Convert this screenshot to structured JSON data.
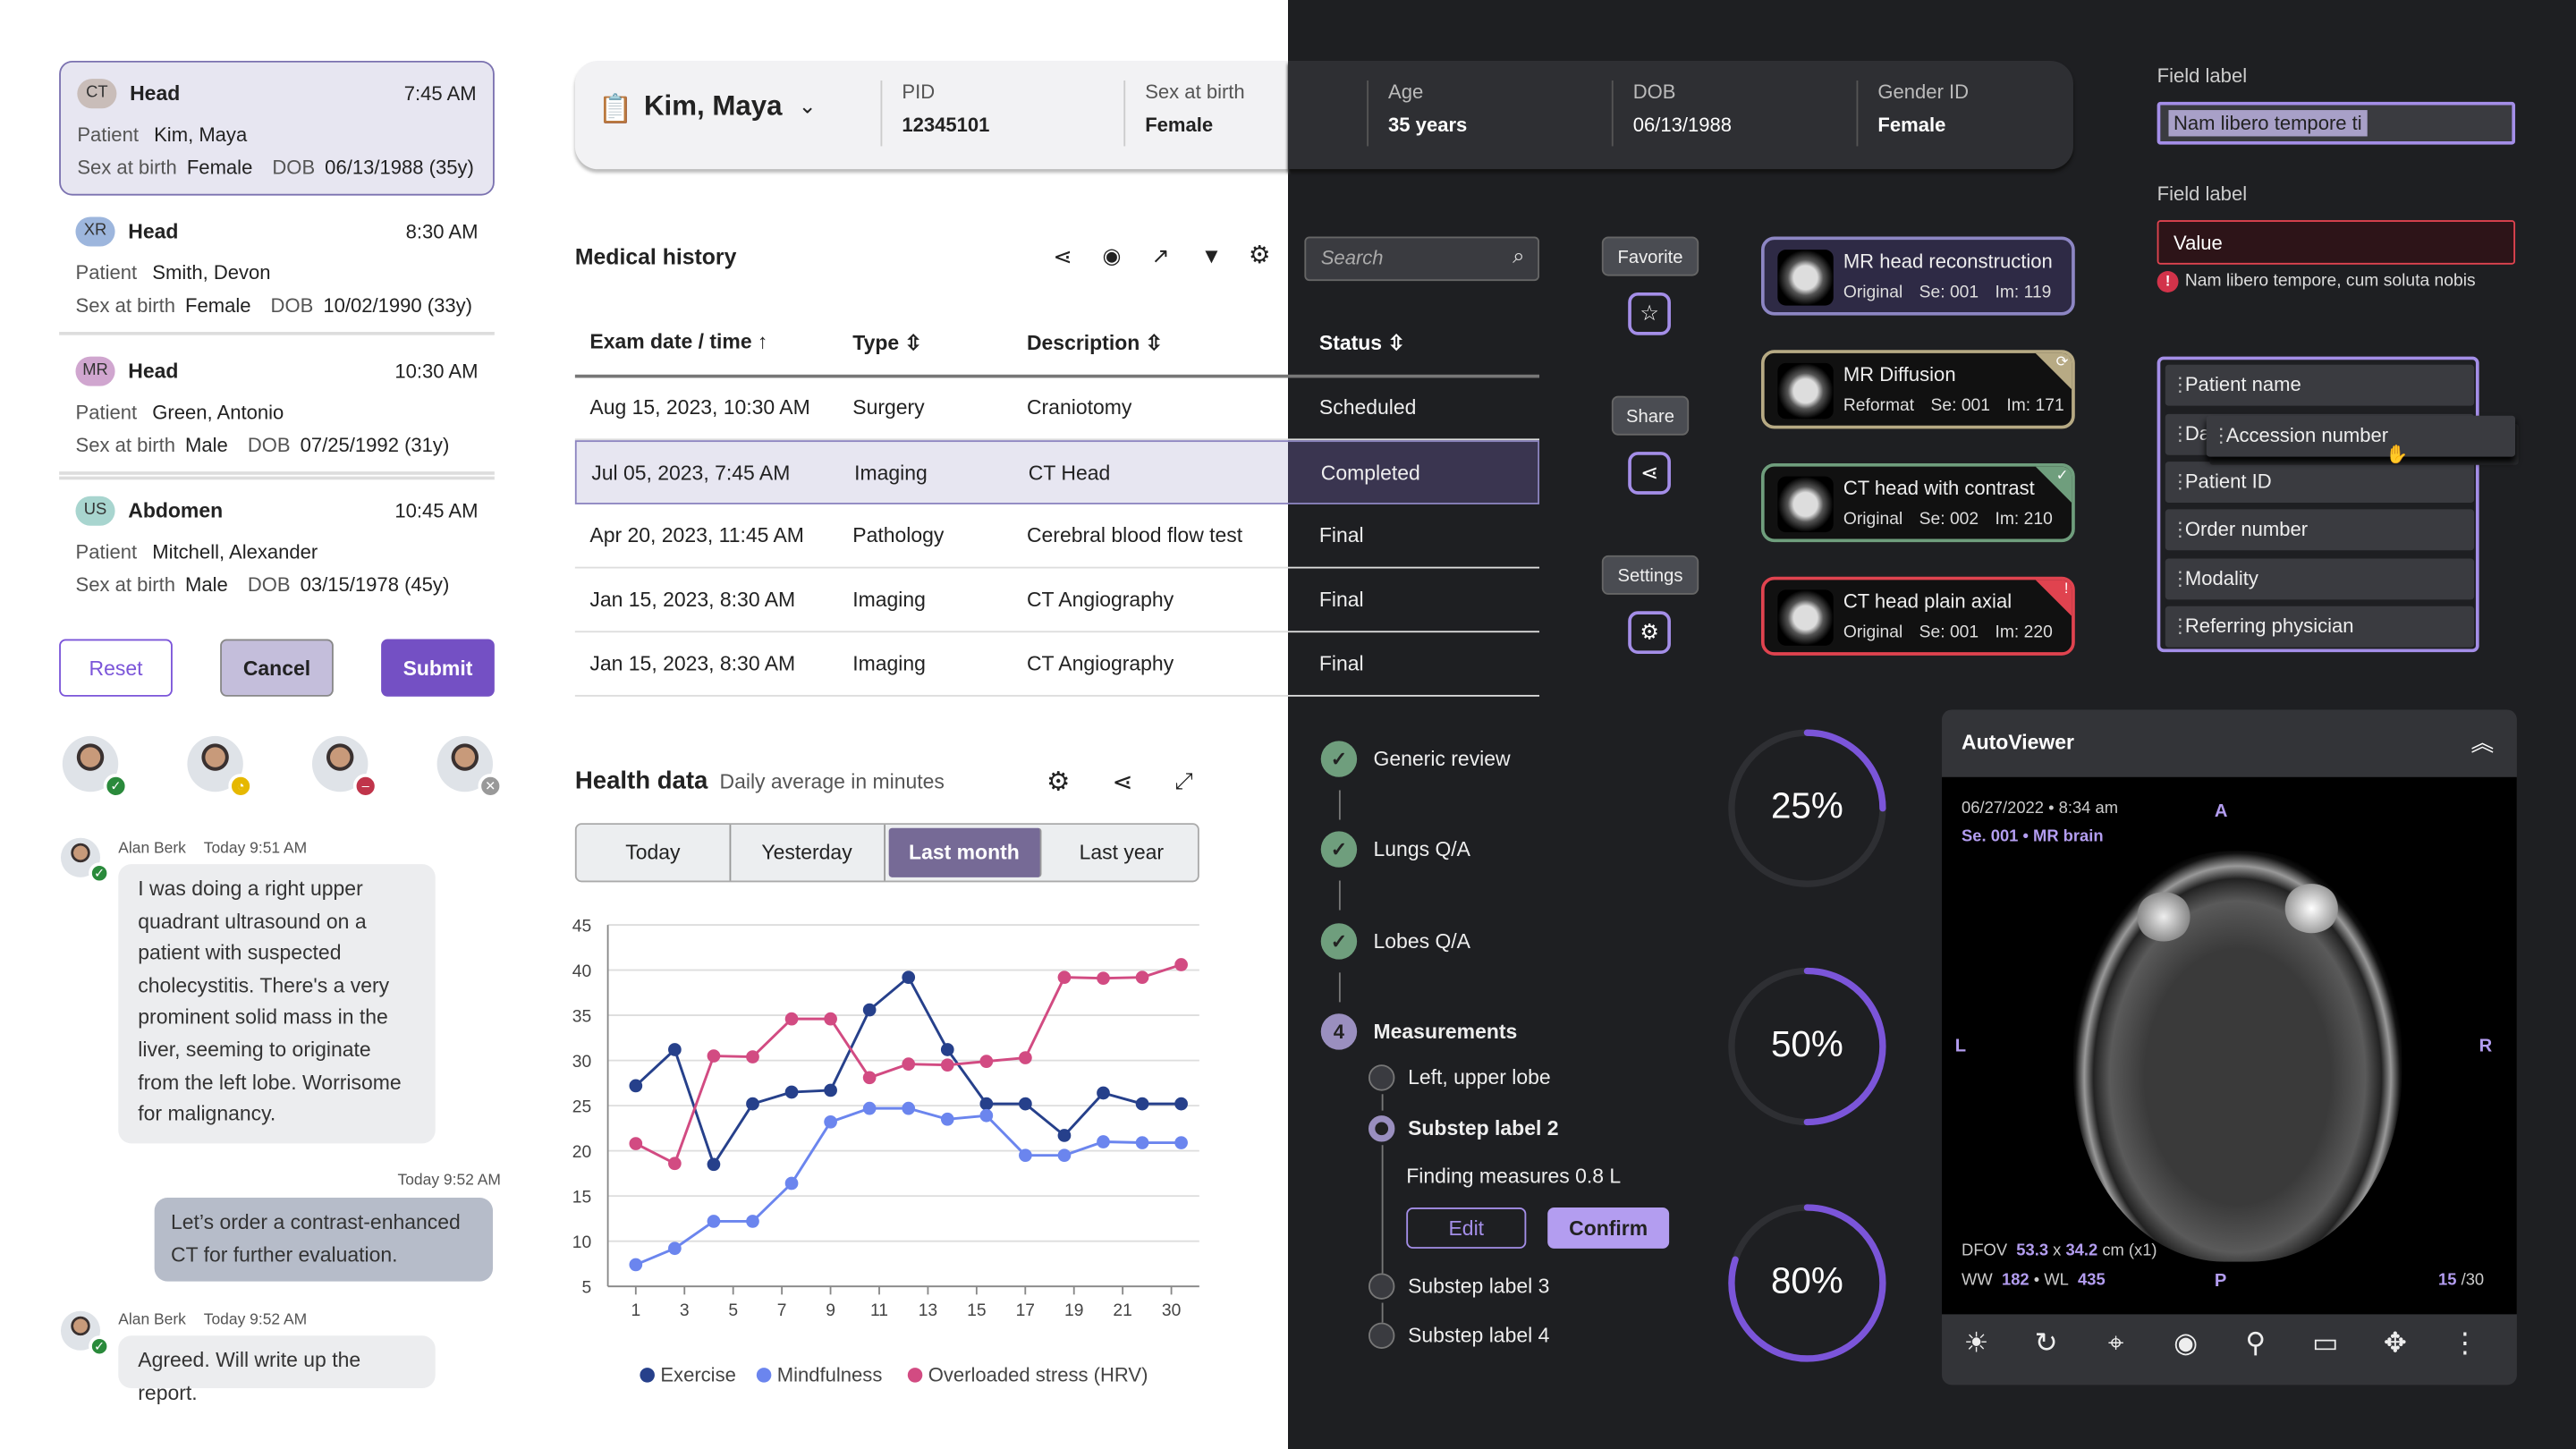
{
  "colors": {
    "accent": "#7b55d9",
    "accent_light": "#b39df0",
    "success": "#6f9e7d",
    "error": "#d2334a",
    "warning": "#b7aa84",
    "dark_bg": "#1e1f22"
  },
  "worklist": [
    {
      "modality": "CT",
      "badge_color": "#c9bdb9",
      "region": "Head",
      "time": "7:45 AM",
      "patient_label": "Patient",
      "patient": "Kim, Maya",
      "sex_label": "Sex at birth",
      "sex": "Female",
      "dob_label": "DOB",
      "dob": "06/13/1988 (35y)",
      "selected": true
    },
    {
      "modality": "XR",
      "badge_color": "#9db6dd",
      "region": "Head",
      "time": "8:30 AM",
      "patient_label": "Patient",
      "patient": "Smith, Devon",
      "sex_label": "Sex at birth",
      "sex": "Female",
      "dob_label": "DOB",
      "dob": "10/02/1990 (33y)"
    },
    {
      "modality": "MR",
      "badge_color": "#d0a6cf",
      "region": "Head",
      "time": "10:30 AM",
      "patient_label": "Patient",
      "patient": "Green, Antonio",
      "sex_label": "Sex at birth",
      "sex": "Male",
      "dob_label": "DOB",
      "dob": "07/25/1992 (31y)"
    },
    {
      "modality": "US",
      "badge_color": "#a8d5cf",
      "region": "Abdomen",
      "time": "10:45 AM",
      "patient_label": "Patient",
      "patient": "Mitchell, Alexander",
      "sex_label": "Sex at birth",
      "sex": "Male",
      "dob_label": "DOB",
      "dob": "03/15/1978 (45y)"
    }
  ],
  "actions": {
    "reset": "Reset",
    "cancel": "Cancel",
    "submit": "Submit"
  },
  "presence": [
    {
      "status": "available",
      "icon": "check-icon"
    },
    {
      "status": "away",
      "icon": "clock-icon"
    },
    {
      "status": "busy",
      "icon": "minus-icon"
    },
    {
      "status": "offline",
      "icon": "x-icon"
    }
  ],
  "chat": [
    {
      "author": "Alan Berk",
      "time": "Today 9:51 AM",
      "text": "I was doing a right upper quadrant ultrasound on a patient with suspected cholecystitis. There's a very prominent solid mass in the liver, seeming to originate from the left lobe. Worrisome for malignancy."
    },
    {
      "author": "",
      "time": "Today 9:52 AM",
      "text": "Let’s order a contrast-enhanced CT for further evaluation."
    },
    {
      "author": "Alan Berk",
      "time": "Today 9:52 AM",
      "text": "Agreed. Will write up the report."
    }
  ],
  "patient_header": {
    "name": "Kim, Maya",
    "fields": [
      {
        "label": "PID",
        "value": "12345101"
      },
      {
        "label": "Sex at birth",
        "value": "Female"
      },
      {
        "label": "Age",
        "value": "35 years"
      },
      {
        "label": "DOB",
        "value": "06/13/1988"
      },
      {
        "label": "Gender ID",
        "value": "Female"
      }
    ]
  },
  "medical_history": {
    "title": "Medical history",
    "search_placeholder": "Search",
    "columns": [
      "Exam date / time",
      "Type",
      "Description",
      "Status"
    ],
    "rows": [
      [
        "Aug 15, 2023, 10:30 AM",
        "Surgery",
        "Craniotomy",
        "Scheduled"
      ],
      [
        "Jul 05, 2023, 7:45 AM",
        "Imaging",
        "CT Head",
        "Completed"
      ],
      [
        "Apr 20, 2023, 11:45 AM",
        "Pathology",
        "Cerebral blood flow test",
        "Final"
      ],
      [
        "Jan 15, 2023, 8:30 AM",
        "Imaging",
        "CT Angiography",
        "Final"
      ],
      [
        "Jan 15, 2023, 8:30 AM",
        "Imaging",
        "CT Angiography",
        "Final"
      ]
    ],
    "selected_row": 1
  },
  "tooltips": [
    {
      "label": "Favorite",
      "icon": "star-icon"
    },
    {
      "label": "Share",
      "icon": "share-icon"
    },
    {
      "label": "Settings",
      "icon": "gear-icon"
    }
  ],
  "series": [
    {
      "title": "MR head reconstruction",
      "type": "Original",
      "se": "Se: 001",
      "im": "Im: 119",
      "border": "#8d86c4",
      "bg": "#2e2a45",
      "status": "default"
    },
    {
      "title": "MR Diffusion",
      "type": "Reformat",
      "se": "Se: 001",
      "im": "Im: 171",
      "border": "#b7aa84",
      "bg": "#111",
      "status": "processing",
      "status_icon": "refresh-icon"
    },
    {
      "title": "CT head with contrast",
      "type": "Original",
      "se": "Se: 002",
      "im": "Im: 210",
      "border": "#6f9e7d",
      "bg": "#111",
      "status": "success",
      "status_icon": "check-icon"
    },
    {
      "title": "CT head plain axial",
      "type": "Original",
      "se": "Se: 001",
      "im": "Im: 220",
      "border": "#e0434f",
      "bg": "#111",
      "status": "error",
      "status_icon": "warning-icon"
    }
  ],
  "fields": [
    {
      "label": "Field label",
      "value": "Nam libero tempore ti",
      "state": "focused"
    },
    {
      "label": "Field label",
      "value": "Value",
      "state": "error",
      "error": "Nam libero tempore, cum soluta nobis"
    }
  ],
  "sortable_list": {
    "items": [
      "Patient name",
      "Da",
      "Patient ID",
      "Order number",
      "Modality",
      "Referring physician"
    ],
    "dragging": "Accession number"
  },
  "health": {
    "title": "Health data",
    "subtitle": "Daily average in minutes",
    "tabs": [
      "Today",
      "Yesterday",
      "Last month",
      "Last year"
    ],
    "active_tab": 2
  },
  "chart_data": {
    "type": "line",
    "ylim": [
      5,
      45
    ],
    "yticks": [
      5,
      10,
      15,
      20,
      25,
      30,
      35,
      40,
      45
    ],
    "xticks": [
      "1",
      "3",
      "5",
      "7",
      "9",
      "11",
      "13",
      "15",
      "17",
      "19",
      "21",
      "30"
    ],
    "grid": true,
    "legend": "bottom",
    "series": [
      {
        "name": "Exercise",
        "color": "#26408b",
        "values": [
          27.2,
          31.2,
          18.5,
          25.2,
          26.5,
          26.7,
          35.6,
          39.2,
          31.2,
          25.2,
          25.2,
          21.7,
          26.4,
          25.2,
          25.2
        ]
      },
      {
        "name": "Mindfulness",
        "color": "#6b85ee",
        "values": [
          7.4,
          9.2,
          12.2,
          12.2,
          16.4,
          23.2,
          24.7,
          24.7,
          23.5,
          23.9,
          19.5,
          19.5,
          21.0,
          20.9,
          20.9
        ]
      },
      {
        "name": "Overloaded stress (HRV)",
        "color": "#d24b82",
        "values": [
          20.8,
          18.6,
          30.5,
          30.4,
          34.6,
          34.6,
          28.1,
          29.6,
          29.5,
          29.9,
          30.3,
          39.2,
          39.1,
          39.2,
          40.6
        ]
      }
    ]
  },
  "stepper": {
    "steps": [
      {
        "label": "Generic review",
        "state": "done"
      },
      {
        "label": "Lungs Q/A",
        "state": "done"
      },
      {
        "label": "Lobes Q/A",
        "state": "done"
      },
      {
        "label": "Measurements",
        "state": "active",
        "number": "4"
      }
    ],
    "substeps": [
      {
        "label": "Left, upper lobe",
        "state": "pending"
      },
      {
        "label": "Substep label 2",
        "state": "active"
      },
      {
        "label": "Substep label 3",
        "state": "pending"
      },
      {
        "label": "Substep label 4",
        "state": "pending"
      }
    ],
    "finding": "Finding measures 0.8 L",
    "edit": "Edit",
    "confirm": "Confirm"
  },
  "progress": [
    {
      "value": 25,
      "label": "25%"
    },
    {
      "value": 50,
      "label": "50%"
    },
    {
      "value": 80,
      "label": "80%"
    }
  ],
  "viewer": {
    "title": "AutoViewer",
    "datetime": "06/27/2022 • 8:34 am",
    "series": "Se. 001 • MR brain",
    "orient": {
      "top": "A",
      "bottom": "P",
      "left": "L",
      "right": "R"
    },
    "dfov_label": "DFOV",
    "dfov_w": "53.3",
    "x": "x",
    "dfov_h": "34.2",
    "dfov_unit": "cm (x1)",
    "ww_label": "WW",
    "ww": "182",
    "wl_label": "• WL",
    "wl": "435",
    "slice": "15",
    "total": "/30",
    "tools": [
      "brightness-icon",
      "rotate-icon",
      "crosshair-icon",
      "eye-icon",
      "zoom-icon",
      "layout-icon",
      "pan-icon",
      "more-icon"
    ]
  }
}
